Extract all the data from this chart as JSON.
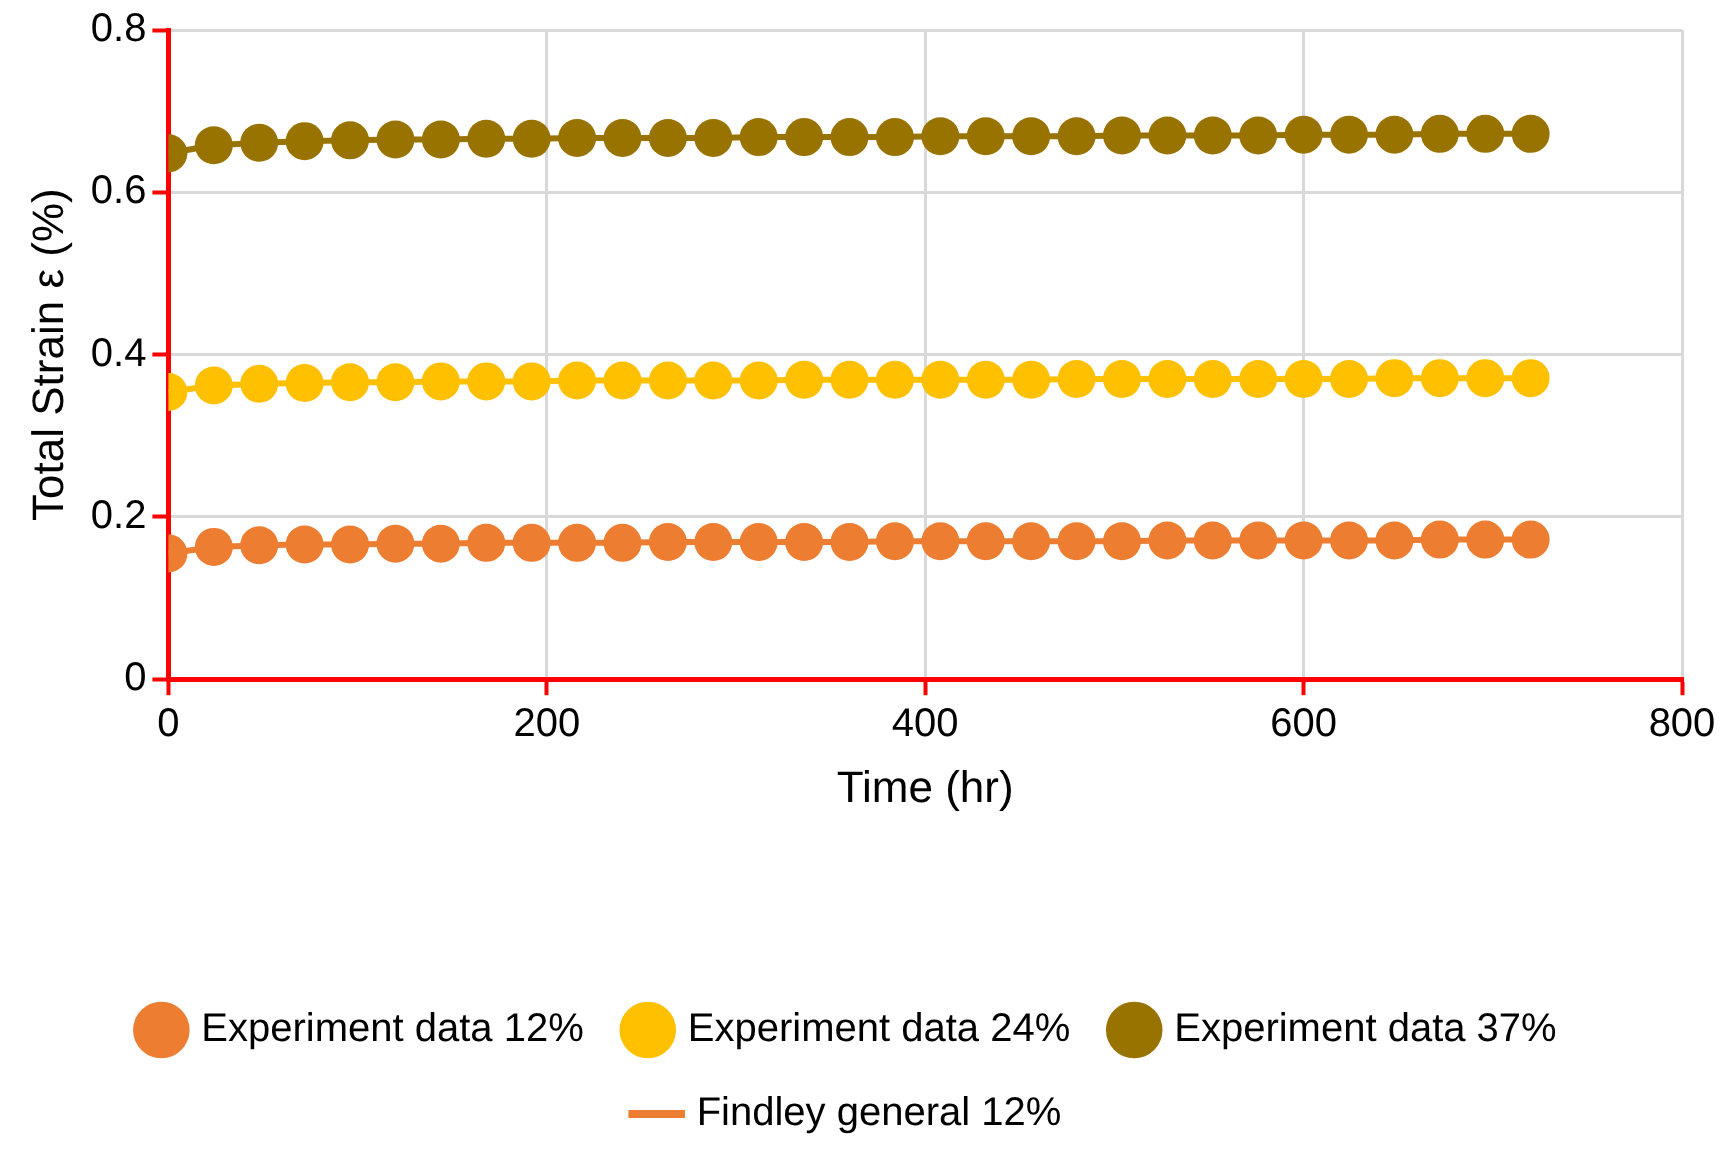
{
  "chart_data": {
    "type": "scatter",
    "xlabel": "Time (hr)",
    "ylabel": "Total Strain ε (%)",
    "marker": "circle",
    "line_style": "solid",
    "x": [
      0,
      24,
      48,
      72,
      96,
      120,
      144,
      168,
      192,
      216,
      240,
      264,
      288,
      312,
      336,
      360,
      384,
      408,
      432,
      456,
      480,
      504,
      528,
      552,
      576,
      600,
      624,
      648,
      672,
      696,
      720
    ],
    "series": [
      {
        "name": "Findley general 12%",
        "type": "line",
        "color": "#ed7d31",
        "marker": "none",
        "values": [
          0.155,
          0.163,
          0.165,
          0.166,
          0.166,
          0.167,
          0.167,
          0.168,
          0.168,
          0.168,
          0.168,
          0.169,
          0.169,
          0.169,
          0.169,
          0.169,
          0.17,
          0.17,
          0.17,
          0.17,
          0.17,
          0.17,
          0.171,
          0.171,
          0.171,
          0.171,
          0.171,
          0.171,
          0.172,
          0.172,
          0.172
        ]
      },
      {
        "type": "line",
        "color": "#ffc000",
        "marker": "none",
        "values": [
          0.354,
          0.362,
          0.364,
          0.365,
          0.366,
          0.366,
          0.367,
          0.367,
          0.367,
          0.368,
          0.368,
          0.368,
          0.368,
          0.368,
          0.369,
          0.369,
          0.369,
          0.369,
          0.369,
          0.369,
          0.37,
          0.37,
          0.37,
          0.37,
          0.37,
          0.37,
          0.37,
          0.371,
          0.371,
          0.371,
          0.371
        ]
      },
      {
        "type": "line",
        "color": "#997300",
        "marker": "none",
        "values": [
          0.648,
          0.658,
          0.661,
          0.663,
          0.664,
          0.665,
          0.665,
          0.666,
          0.666,
          0.667,
          0.667,
          0.667,
          0.667,
          0.668,
          0.668,
          0.668,
          0.668,
          0.669,
          0.669,
          0.669,
          0.669,
          0.67,
          0.67,
          0.67,
          0.67,
          0.671,
          0.671,
          0.671,
          0.672,
          0.672,
          0.672
        ]
      },
      {
        "name": "Experiment data 12%",
        "color": "#ed7d31",
        "values": [
          0.155,
          0.163,
          0.165,
          0.166,
          0.166,
          0.167,
          0.167,
          0.168,
          0.168,
          0.168,
          0.168,
          0.169,
          0.169,
          0.169,
          0.169,
          0.169,
          0.17,
          0.17,
          0.17,
          0.17,
          0.17,
          0.17,
          0.171,
          0.171,
          0.171,
          0.171,
          0.171,
          0.171,
          0.172,
          0.172,
          0.172
        ]
      },
      {
        "name": "Experiment data 24%",
        "color": "#ffc000",
        "values": [
          0.354,
          0.362,
          0.364,
          0.365,
          0.366,
          0.366,
          0.367,
          0.367,
          0.367,
          0.368,
          0.368,
          0.368,
          0.368,
          0.368,
          0.369,
          0.369,
          0.369,
          0.369,
          0.369,
          0.369,
          0.37,
          0.37,
          0.37,
          0.37,
          0.37,
          0.37,
          0.37,
          0.371,
          0.371,
          0.371,
          0.371
        ]
      },
      {
        "name": "Experiment data 37%",
        "color": "#997300",
        "values": [
          0.648,
          0.658,
          0.661,
          0.663,
          0.664,
          0.665,
          0.665,
          0.666,
          0.666,
          0.667,
          0.667,
          0.667,
          0.667,
          0.668,
          0.668,
          0.668,
          0.668,
          0.669,
          0.669,
          0.669,
          0.669,
          0.67,
          0.67,
          0.67,
          0.67,
          0.671,
          0.671,
          0.671,
          0.672,
          0.672,
          0.672
        ]
      }
    ],
    "xlim": [
      0,
      800
    ],
    "xticks": [
      0,
      200,
      400,
      600,
      800
    ],
    "ylim": [
      0,
      0.8
    ],
    "yticks": [
      0,
      0.2,
      0.4,
      0.6,
      0.8
    ],
    "grid": true,
    "legend": "bottom"
  }
}
